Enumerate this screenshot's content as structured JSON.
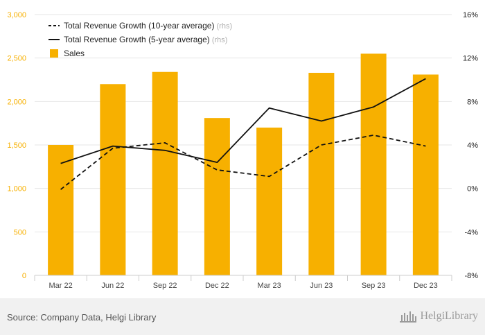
{
  "chart_data": {
    "type": "bar",
    "categories": [
      "Mar 22",
      "Jun 22",
      "Sep 22",
      "Dec 22",
      "Mar 23",
      "Jun 23",
      "Sep 23",
      "Dec 23"
    ],
    "series": [
      {
        "name": "Sales",
        "kind": "bar",
        "axis": "left",
        "color": "#f7b000",
        "values": [
          1500,
          2200,
          2340,
          1810,
          1700,
          2330,
          2550,
          2310
        ]
      },
      {
        "name": "Total Revenue Growth (10-year average)",
        "suffix": "(rhs)",
        "kind": "line",
        "style": "dashed",
        "axis": "right",
        "color": "#111111",
        "values": [
          -0.1,
          3.7,
          4.2,
          1.7,
          1.1,
          4.0,
          4.9,
          3.9
        ]
      },
      {
        "name": "Total Revenue Growth (5-year average)",
        "suffix": "(rhs)",
        "kind": "line",
        "style": "solid",
        "axis": "right",
        "color": "#111111",
        "values": [
          2.3,
          3.9,
          3.5,
          2.4,
          7.4,
          6.2,
          7.5,
          10.1
        ]
      }
    ],
    "y_left": {
      "ylim": [
        0,
        3000
      ],
      "ticks": [
        0,
        500,
        1000,
        1500,
        2000,
        2500,
        3000
      ],
      "tick_labels": [
        "0",
        "500",
        "1,000",
        "1,500",
        "2,000",
        "2,500",
        "3,000"
      ],
      "color": "#f7b000"
    },
    "y_right": {
      "ylim": [
        -8,
        16
      ],
      "ticks": [
        -8,
        -4,
        0,
        4,
        8,
        12,
        16
      ],
      "tick_labels": [
        "-8%",
        "-4%",
        "0%",
        "4%",
        "8%",
        "12%",
        "16%"
      ]
    },
    "grid": true,
    "legend_position": "top-left"
  },
  "footer": {
    "source": "Source: Company Data, Helgi Library",
    "logo_text": "HelgiLibrary"
  }
}
